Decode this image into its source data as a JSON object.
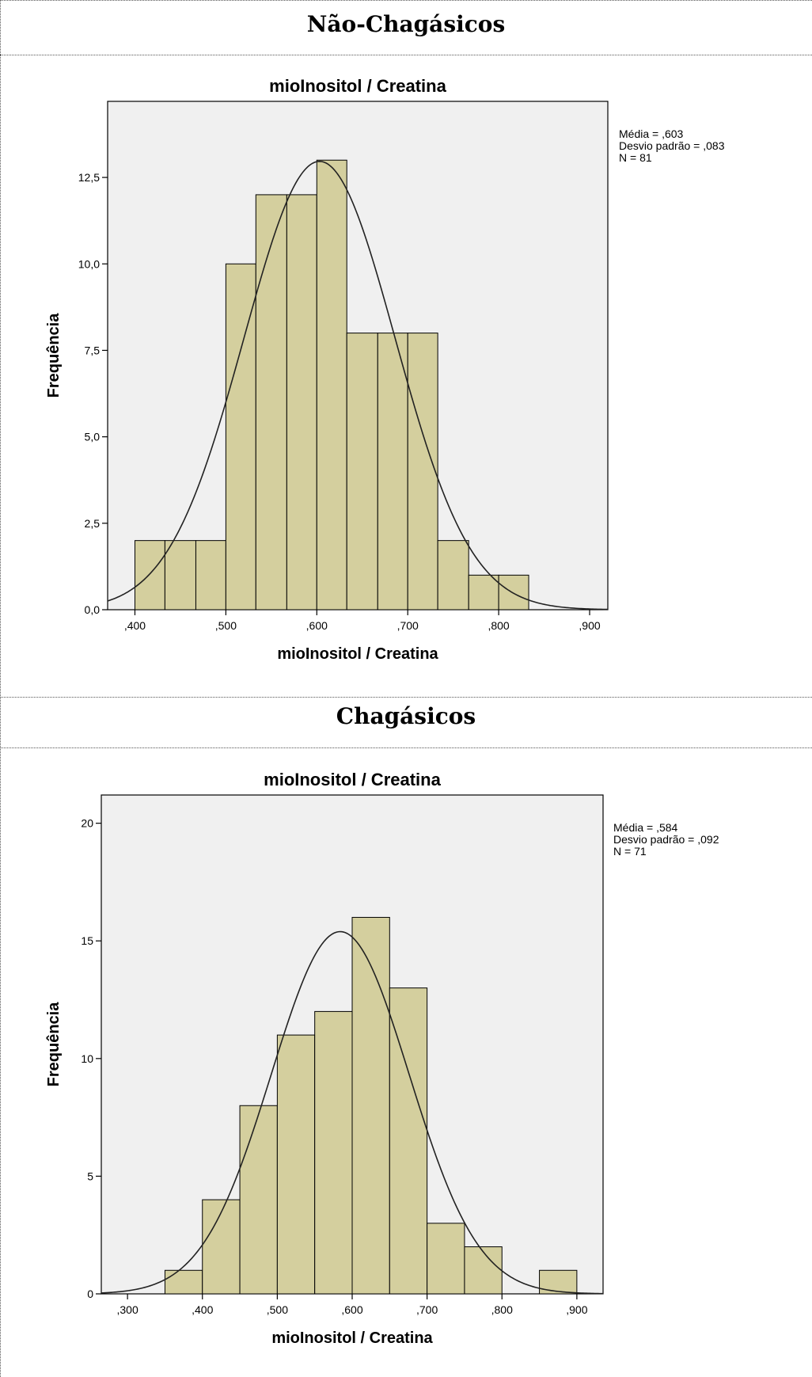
{
  "sections": [
    {
      "title": "Não-Chagásicos"
    },
    {
      "title": "Chagásicos"
    }
  ],
  "chart_data": [
    {
      "type": "bar",
      "title": "mioInositol / Creatina",
      "xlabel": "mioInositol / Creatina",
      "ylabel": "Frequência",
      "xlim": [
        0.37,
        0.92
      ],
      "ylim": [
        0,
        14.7
      ],
      "xticks": [
        0.4,
        0.5,
        0.6,
        0.7,
        0.8,
        0.9
      ],
      "xtick_labels": [
        ",400",
        ",500",
        ",600",
        ",700",
        ",800",
        ",900"
      ],
      "yticks": [
        0,
        2.5,
        5,
        7.5,
        10,
        12.5
      ],
      "ytick_labels": [
        "0,0",
        "2,5",
        "5,0",
        "7,5",
        "10,0",
        "12,5"
      ],
      "bins": [
        {
          "start": 0.4,
          "end": 0.433,
          "value": 2
        },
        {
          "start": 0.433,
          "end": 0.467,
          "value": 2
        },
        {
          "start": 0.467,
          "end": 0.5,
          "value": 2
        },
        {
          "start": 0.5,
          "end": 0.533,
          "value": 10
        },
        {
          "start": 0.533,
          "end": 0.567,
          "value": 12
        },
        {
          "start": 0.567,
          "end": 0.6,
          "value": 12
        },
        {
          "start": 0.6,
          "end": 0.633,
          "value": 13
        },
        {
          "start": 0.633,
          "end": 0.667,
          "value": 8
        },
        {
          "start": 0.667,
          "end": 0.7,
          "value": 8
        },
        {
          "start": 0.7,
          "end": 0.733,
          "value": 8
        },
        {
          "start": 0.733,
          "end": 0.767,
          "value": 2
        },
        {
          "start": 0.767,
          "end": 0.8,
          "value": 1
        },
        {
          "start": 0.8,
          "end": 0.833,
          "value": 1
        }
      ],
      "normal_curve": {
        "mean": 0.603,
        "sd": 0.083,
        "n": 81,
        "bin_width": 0.0333
      },
      "stats": [
        "Média = ,603",
        "Desvio padrão = ,083",
        "N = 81"
      ],
      "grid": false,
      "legend": "right",
      "bar_color": "#d4cf9e",
      "plot_bg": "#f0f0f0"
    },
    {
      "type": "bar",
      "title": "mioInositol / Creatina",
      "xlabel": "mioInositol / Creatina",
      "ylabel": "Frequência",
      "xlim": [
        0.265,
        0.935
      ],
      "ylim": [
        0,
        21.2
      ],
      "xticks": [
        0.3,
        0.4,
        0.5,
        0.6,
        0.7,
        0.8,
        0.9
      ],
      "xtick_labels": [
        ",300",
        ",400",
        ",500",
        ",600",
        ",700",
        ",800",
        ",900"
      ],
      "yticks": [
        0,
        5,
        10,
        15,
        20
      ],
      "ytick_labels": [
        "0",
        "5",
        "10",
        "15",
        "20"
      ],
      "bins": [
        {
          "start": 0.35,
          "end": 0.4,
          "value": 1
        },
        {
          "start": 0.4,
          "end": 0.45,
          "value": 4
        },
        {
          "start": 0.45,
          "end": 0.5,
          "value": 8
        },
        {
          "start": 0.5,
          "end": 0.55,
          "value": 11
        },
        {
          "start": 0.55,
          "end": 0.6,
          "value": 12
        },
        {
          "start": 0.6,
          "end": 0.65,
          "value": 16
        },
        {
          "start": 0.65,
          "end": 0.7,
          "value": 13
        },
        {
          "start": 0.7,
          "end": 0.75,
          "value": 3
        },
        {
          "start": 0.75,
          "end": 0.8,
          "value": 2
        },
        {
          "start": 0.85,
          "end": 0.9,
          "value": 1
        }
      ],
      "normal_curve": {
        "mean": 0.584,
        "sd": 0.092,
        "n": 71,
        "bin_width": 0.05
      },
      "stats": [
        "Média = ,584",
        "Desvio padrão = ,092",
        "N = 71"
      ],
      "grid": false,
      "legend": "right",
      "bar_color": "#d4cf9e",
      "plot_bg": "#f0f0f0"
    }
  ]
}
